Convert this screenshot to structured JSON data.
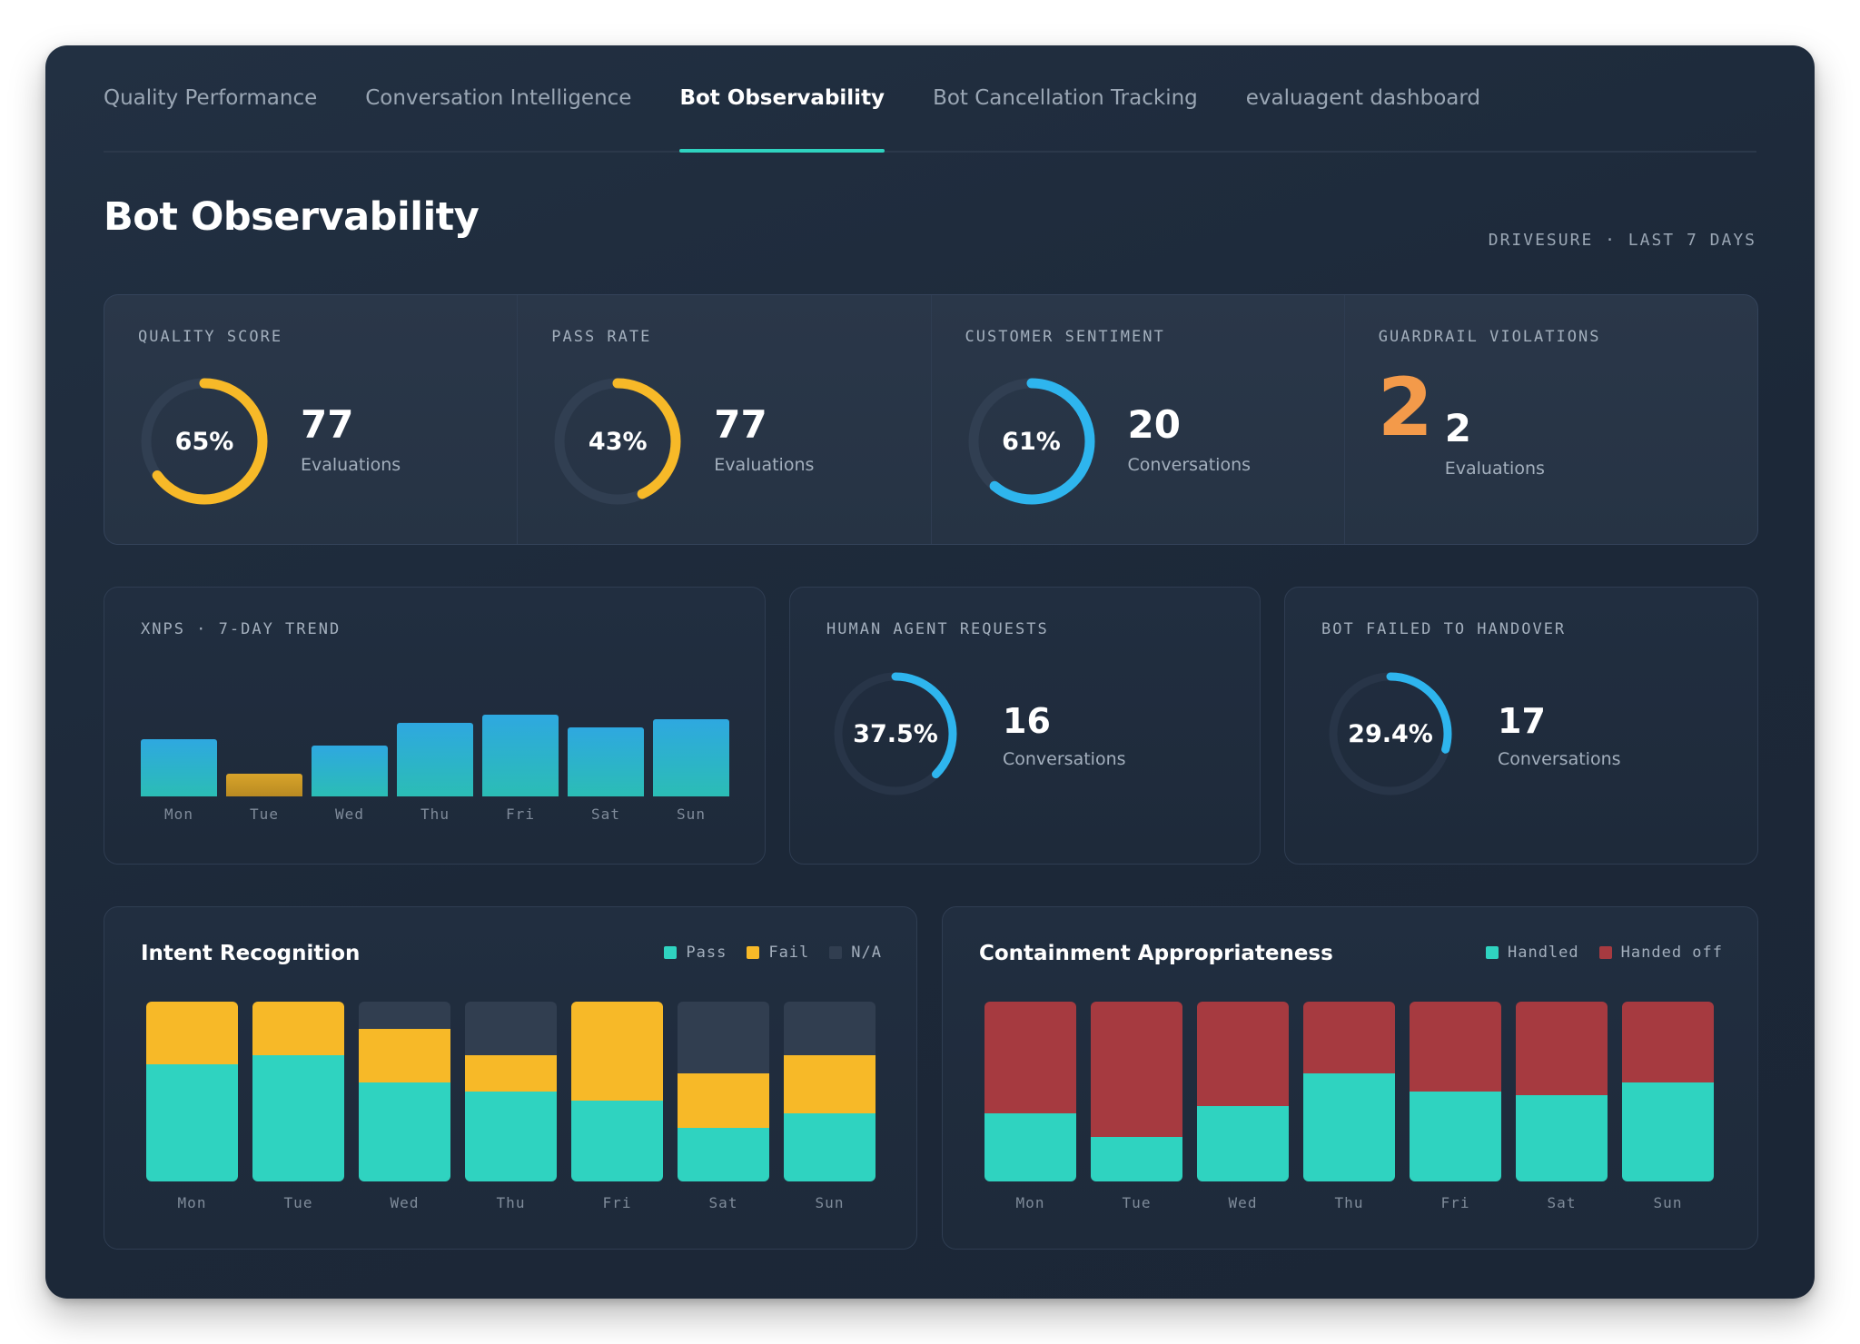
{
  "tabs": [
    {
      "label": "Quality Performance",
      "active": false
    },
    {
      "label": "Conversation Intelligence",
      "active": false
    },
    {
      "label": "Bot Observability",
      "active": true
    },
    {
      "label": "Bot Cancellation Tracking",
      "active": false
    },
    {
      "label": "evaluagent dashboard",
      "active": false
    }
  ],
  "header": {
    "title": "Bot Observability",
    "context": "DRIVESURE · LAST 7 DAYS"
  },
  "colors": {
    "accent": "#2fd3c0",
    "gold": "#f7b928",
    "blue": "#2eb5ee",
    "orange": "#f39a4a",
    "red": "#a63a40",
    "na": "#313e50"
  },
  "kpis": [
    {
      "label": "QUALITY SCORE",
      "percent": 65,
      "percent_text": "65%",
      "value": "77",
      "unit": "Evaluations",
      "color": "#f7b928"
    },
    {
      "label": "PASS RATE",
      "percent": 43,
      "percent_text": "43%",
      "value": "77",
      "unit": "Evaluations",
      "color": "#f7b928"
    },
    {
      "label": "CUSTOMER SENTIMENT",
      "percent": 61,
      "percent_text": "61%",
      "value": "20",
      "unit": "Conversations",
      "color": "#2eb5ee"
    },
    {
      "label": "GUARDRAIL VIOLATIONS",
      "big": "2",
      "value": "2",
      "unit": "Evaluations"
    }
  ],
  "xnps": {
    "label": "XNPS · 7-DAY TREND"
  },
  "human_agent": {
    "label": "HUMAN AGENT REQUESTS",
    "percent": 37.5,
    "percent_text": "37.5%",
    "value": "16",
    "unit": "Conversations"
  },
  "handover": {
    "label": "BOT FAILED TO HANDOVER",
    "percent": 29.4,
    "percent_text": "29.4%",
    "value": "17",
    "unit": "Conversations"
  },
  "intent": {
    "title": "Intent Recognition",
    "legend": [
      "Pass",
      "Fail",
      "N/A"
    ]
  },
  "containment": {
    "title": "Containment Appropriateness",
    "legend": [
      "Handled",
      "Handed off"
    ]
  },
  "chart_data": [
    {
      "type": "bar",
      "title": "XNPS · 7-DAY TREND",
      "categories": [
        "Mon",
        "Tue",
        "Wed",
        "Thu",
        "Fri",
        "Sat",
        "Sun"
      ],
      "values": [
        57,
        23,
        51,
        74,
        82,
        69,
        77
      ],
      "ylim": [
        0,
        100
      ],
      "colors": [
        "#2eb5ee",
        "#d9a52b",
        "#2eb5ee",
        "#2eb5ee",
        "#2eb5ee",
        "#2eb5ee",
        "#2eb5ee"
      ]
    },
    {
      "type": "bar",
      "stacked": true,
      "title": "Intent Recognition",
      "categories": [
        "Mon",
        "Tue",
        "Wed",
        "Thu",
        "Fri",
        "Sat",
        "Sun"
      ],
      "series": [
        {
          "name": "Pass",
          "color": "#2fd3c0",
          "values": [
            65,
            70,
            55,
            50,
            45,
            30,
            38
          ]
        },
        {
          "name": "Fail",
          "color": "#f7b928",
          "values": [
            35,
            30,
            30,
            20,
            55,
            30,
            32
          ]
        },
        {
          "name": "N/A",
          "color": "#313e50",
          "values": [
            0,
            0,
            15,
            30,
            0,
            40,
            30
          ]
        }
      ],
      "ylim": [
        0,
        100
      ],
      "legend_position": "top-right"
    },
    {
      "type": "bar",
      "stacked": true,
      "title": "Containment Appropriateness",
      "categories": [
        "Mon",
        "Tue",
        "Wed",
        "Thu",
        "Fri",
        "Sat",
        "Sun"
      ],
      "series": [
        {
          "name": "Handled",
          "color": "#2fd3c0",
          "values": [
            38,
            25,
            42,
            60,
            50,
            48,
            55
          ]
        },
        {
          "name": "Handed off",
          "color": "#a63a40",
          "values": [
            62,
            75,
            58,
            40,
            50,
            52,
            45
          ]
        }
      ],
      "ylim": [
        0,
        100
      ],
      "legend_position": "top-right"
    }
  ]
}
